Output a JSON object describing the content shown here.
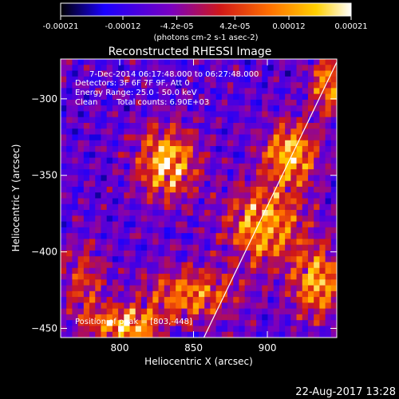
{
  "chart_data": {
    "type": "heatmap",
    "title": "Reconstructed RHESSI Image",
    "xlabel": "Heliocentric X (arcsec)",
    "ylabel": "Heliocentric Y (arcsec)",
    "xlim": [
      760,
      947
    ],
    "ylim": [
      -456,
      -274
    ],
    "x_ticks": [
      800,
      850,
      900
    ],
    "y_ticks": [
      -450,
      -400,
      -350,
      -300
    ],
    "colorbar": {
      "ticks": [
        "-0.00021",
        "-0.00012",
        "-4.2e-05",
        "4.2e-05",
        "0.00012",
        "0.00021"
      ],
      "tick_values": [
        -0.00021,
        -0.00012,
        -4.2e-05,
        4.2e-05,
        0.00012,
        0.00021
      ],
      "range": [
        -0.00021,
        0.00021
      ],
      "unit_label": "(photons cm-2 s-1 asec-2)",
      "colors": [
        "#000000",
        "#1a00ff",
        "#7a00c0",
        "#d01818",
        "#ff7000",
        "#ffd000",
        "#ffffff"
      ]
    },
    "annotations": [
      "7-Dec-2014 06:17:48.000 to 06:27:48.000",
      "Detectors: 3F 6F 7F 9F, Att 0",
      "Energy Range: 25.0 - 50.0 keV",
      "Clean",
      "Total counts: 6.90E+03"
    ],
    "peak_label": "Position of peak = [803,-448]",
    "peak": [
      803,
      -448
    ],
    "limb_line": [
      [
        857,
        -456
      ],
      [
        947,
        -276
      ]
    ],
    "sources": [
      {
        "x": 832,
        "y": -342,
        "sx": 14,
        "sy": 16,
        "amp": 1.0
      },
      {
        "x": 916,
        "y": -336,
        "sx": 12,
        "sy": 14,
        "amp": 1.0
      },
      {
        "x": 898,
        "y": -382,
        "sx": 18,
        "sy": 18,
        "amp": 0.9
      },
      {
        "x": 934,
        "y": -420,
        "sx": 12,
        "sy": 16,
        "amp": 0.9
      },
      {
        "x": 803,
        "y": -448,
        "sx": 16,
        "sy": 8,
        "amp": 1.0
      },
      {
        "x": 848,
        "y": -428,
        "sx": 22,
        "sy": 12,
        "amp": 0.75
      },
      {
        "x": 941,
        "y": -290,
        "sx": 8,
        "sy": 14,
        "amp": 0.8
      },
      {
        "x": 776,
        "y": -420,
        "sx": 10,
        "sy": 18,
        "amp": 0.5
      }
    ]
  },
  "footer": {
    "timestamp": "22-Aug-2017 13:28"
  }
}
